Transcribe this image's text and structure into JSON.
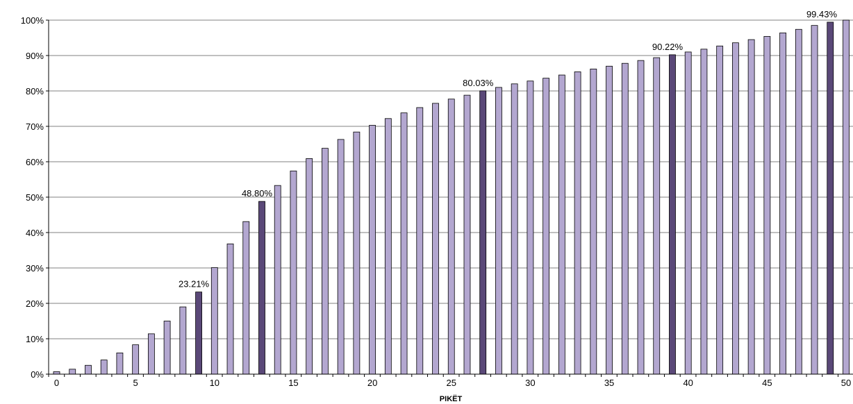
{
  "chart_data": {
    "type": "bar",
    "title": "",
    "xlabel": "PIKËT",
    "ylabel": "",
    "ylim": [
      0,
      100
    ],
    "yticks": [
      "0%",
      "10%",
      "20%",
      "30%",
      "40%",
      "50%",
      "60%",
      "70%",
      "80%",
      "90%",
      "100%"
    ],
    "xticks": [
      "0",
      "5",
      "10",
      "15",
      "20",
      "25",
      "30",
      "35",
      "40",
      "45",
      "50"
    ],
    "grid": true,
    "legend": "none",
    "colors": {
      "normal": "#b3a7d0",
      "highlight": "#5a4878",
      "outline": "#000000",
      "grid": "#808080"
    },
    "x": [
      0,
      1,
      2,
      3,
      4,
      5,
      6,
      7,
      8,
      9,
      10,
      11,
      12,
      13,
      14,
      15,
      16,
      17,
      18,
      19,
      20,
      21,
      22,
      23,
      24,
      25,
      26,
      27,
      28,
      29,
      30,
      31,
      32,
      33,
      34,
      35,
      36,
      37,
      38,
      39,
      40,
      41,
      42,
      43,
      44,
      45,
      46,
      47,
      48,
      49,
      50
    ],
    "values": [
      0.7,
      1.4,
      2.5,
      4.0,
      6.0,
      8.3,
      11.4,
      15.0,
      19.0,
      23.21,
      30.1,
      36.8,
      43.1,
      48.8,
      53.3,
      57.4,
      60.9,
      63.8,
      66.3,
      68.4,
      70.3,
      72.2,
      73.8,
      75.3,
      76.5,
      77.7,
      78.8,
      80.03,
      81.0,
      82.0,
      82.8,
      83.6,
      84.5,
      85.4,
      86.2,
      87.0,
      87.8,
      88.6,
      89.4,
      90.22,
      91.0,
      91.8,
      92.7,
      93.6,
      94.5,
      95.4,
      96.4,
      97.4,
      98.5,
      99.43,
      100.0
    ],
    "highlighted": [
      9,
      13,
      27,
      39,
      49
    ],
    "annotations": [
      {
        "x": 9,
        "text": "23.21%"
      },
      {
        "x": 13,
        "text": "48.80%"
      },
      {
        "x": 27,
        "text": "80.03%"
      },
      {
        "x": 39,
        "text": "90.22%"
      },
      {
        "x": 49,
        "text": "99.43%"
      }
    ]
  }
}
